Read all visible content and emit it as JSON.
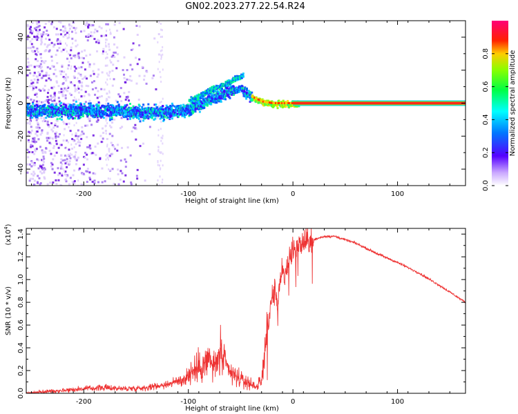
{
  "page_title": "GN02.2023.277.22.54.R24",
  "chart_data": [
    {
      "type": "heatmap",
      "name": "spectrogram",
      "xlabel": "Height of straight line (km)",
      "ylabel": "Frequency (Hz)",
      "xlim": [
        -255,
        165
      ],
      "ylim": [
        -50,
        50
      ],
      "x_ticks": [
        -200,
        -100,
        0,
        100
      ],
      "x_tick_labels": [
        "-200",
        "-100",
        "0",
        "100"
      ],
      "y_ticks": [
        -40,
        -20,
        0,
        20,
        40
      ],
      "y_tick_labels": [
        "-40",
        "-20",
        "0",
        "20",
        "40"
      ],
      "colorbar": {
        "label": "Normalized spectral amplitude",
        "range": [
          0,
          1
        ],
        "ticks": [
          0.0,
          0.2,
          0.4,
          0.6,
          0.8
        ],
        "tick_labels": [
          "0.0",
          "0.2",
          "0.4",
          "0.6",
          "0.8"
        ]
      },
      "signal_trace": {
        "description_points_x": [
          -255,
          -220,
          -180,
          -150,
          -120,
          -100,
          -80,
          -60,
          -50,
          -40,
          -30,
          -20,
          -10,
          0,
          165
        ],
        "center_frequency_hz": [
          -4,
          -4,
          -4,
          -5,
          -5,
          -3,
          3,
          8,
          9,
          4,
          1,
          0,
          0,
          0,
          0
        ]
      }
    },
    {
      "type": "line",
      "name": "snr",
      "xlabel": "Height of straight line (km)",
      "ylabel": "SNR (10 * v/v)",
      "scale_label": "(x10",
      "scale_exp": "4",
      "scale_close": ")",
      "xlim": [
        -255,
        165
      ],
      "ylim": [
        0,
        1.45
      ],
      "x_ticks": [
        -200,
        -100,
        0,
        100
      ],
      "x_tick_labels": [
        "-200",
        "-100",
        "0",
        "100"
      ],
      "y_ticks": [
        0.0,
        0.2,
        0.4,
        0.6,
        0.8,
        1.0,
        1.2,
        1.4
      ],
      "y_tick_labels": [
        "0.0",
        "0.2",
        "0.4",
        "0.6",
        "0.8",
        "1.0",
        "1.2",
        "1.4"
      ],
      "color": "#ee3333",
      "series": [
        {
          "name": "SNR",
          "x": [
            -255,
            -230,
            -200,
            -180,
            -160,
            -140,
            -120,
            -105,
            -95,
            -85,
            -80,
            -75,
            -70,
            -65,
            -60,
            -55,
            -50,
            -45,
            -40,
            -35,
            -30,
            -28,
            -25,
            -22,
            -20,
            -17,
            -15,
            -12,
            -10,
            -8,
            -5,
            0,
            10,
            20,
            30,
            40,
            60,
            80,
            100,
            120,
            140,
            165
          ],
          "y": [
            0.0,
            0.02,
            0.04,
            0.05,
            0.04,
            0.05,
            0.08,
            0.12,
            0.2,
            0.25,
            0.3,
            0.22,
            0.35,
            0.25,
            0.18,
            0.15,
            0.12,
            0.1,
            0.08,
            0.06,
            0.1,
            0.3,
            0.55,
            0.7,
            0.85,
            0.9,
            0.8,
            0.95,
            1.1,
            1.0,
            1.15,
            1.25,
            1.32,
            1.35,
            1.38,
            1.38,
            1.32,
            1.23,
            1.15,
            1.06,
            0.95,
            0.8
          ]
        }
      ]
    }
  ]
}
